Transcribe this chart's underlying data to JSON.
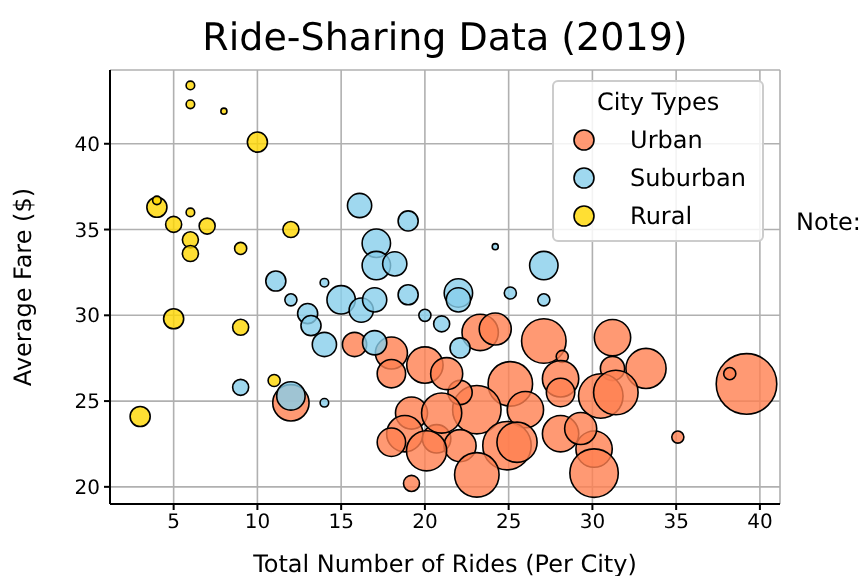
{
  "chart_data": {
    "type": "bubble",
    "title": "Ride-Sharing Data (2019)",
    "xlabel": "Total Number of Rides (Per City)",
    "ylabel": "Average Fare ($)",
    "legend_title": "City Types",
    "legend": "top right",
    "grid": true,
    "marker": "circle",
    "xlim": [
      1.2,
      41.2
    ],
    "xticks": [
      5,
      10,
      15,
      20,
      25,
      30,
      35,
      40
    ],
    "ylim": [
      19,
      44.3
    ],
    "yticks": [
      20,
      25,
      30,
      35,
      40
    ],
    "annotations": [
      "Note:"
    ],
    "series": [
      {
        "name": "Urban",
        "color": "#ff7f50",
        "x": [
          15.8,
          18,
          20,
          18,
          19.2,
          18.8,
          18,
          19.2,
          12,
          20.7,
          23.3,
          24.2,
          27.1,
          31.2,
          28.2,
          33.2,
          39.2,
          38.2,
          31.2,
          25.1,
          28.1,
          30.5,
          31.4,
          28.1,
          23.1,
          26,
          22.1,
          21.3,
          21,
          28.1,
          24.9,
          30.1,
          22.1,
          23.1,
          30.1,
          35.1,
          25.5,
          29.3,
          20.1
        ],
        "values": [
          28.3,
          27.8,
          27.1,
          26.6,
          24.3,
          23.1,
          22.6,
          20.2,
          24.9,
          22.8,
          29,
          29.2,
          28.5,
          28.7,
          27.6,
          26.9,
          26,
          26.6,
          26.9,
          26,
          26.3,
          25.3,
          25.5,
          25.5,
          24.5,
          24.5,
          25.5,
          26.6,
          24.3,
          23.1,
          22.4,
          22.2,
          22.4,
          20.7,
          20.8,
          22.9,
          22.6,
          23.4,
          22.1
        ],
        "sizes": [
          0.16,
          0.28,
          0.36,
          0.22,
          0.28,
          0.36,
          0.22,
          0.07,
          0.36,
          0.22,
          0.36,
          0.28,
          0.54,
          0.36,
          0.04,
          0.44,
          1,
          0.04,
          0.16,
          0.54,
          0.36,
          0.54,
          0.54,
          0.22,
          0.64,
          0.36,
          0.16,
          0.28,
          0.44,
          0.36,
          0.64,
          0.36,
          0.28,
          0.54,
          0.64,
          0.04,
          0.44,
          0.28,
          0.44
        ]
      },
      {
        "name": "Suburban",
        "color": "#87ceeb",
        "x": [
          16.1,
          19,
          17.1,
          17.1,
          18.2,
          11.1,
          14,
          12,
          15,
          16.2,
          17,
          19,
          13,
          13.2,
          14,
          20,
          21,
          17,
          9,
          12,
          14,
          24.2,
          27.1,
          25.1,
          27.1,
          22,
          22,
          22.1
        ],
        "values": [
          36.4,
          35.5,
          34.2,
          32.9,
          33,
          32,
          31.9,
          30.9,
          30.9,
          30.3,
          30.9,
          31.2,
          30.1,
          29.4,
          28.3,
          30,
          29.5,
          28.4,
          25.8,
          25.3,
          24.9,
          34,
          32.9,
          31.3,
          30.9,
          31.3,
          30.9,
          28.1
        ],
        "sizes": [
          0.16,
          0.11,
          0.22,
          0.22,
          0.16,
          0.11,
          0.02,
          0.04,
          0.22,
          0.16,
          0.16,
          0.11,
          0.11,
          0.11,
          0.16,
          0.04,
          0.07,
          0.16,
          0.07,
          0.22,
          0.02,
          0.01,
          0.22,
          0.04,
          0.04,
          0.22,
          0.16,
          0.11
        ]
      },
      {
        "name": "Rural",
        "color": "#ffd700",
        "x": [
          3,
          4,
          4,
          5,
          5,
          6,
          6,
          6,
          6,
          6,
          7,
          8,
          9,
          9,
          10,
          12,
          11
        ],
        "values": [
          24.1,
          36.3,
          36.7,
          35.3,
          29.8,
          43.4,
          42.3,
          36,
          34.4,
          33.6,
          35.2,
          41.9,
          33.9,
          29.3,
          40.1,
          35,
          26.2
        ],
        "sizes": [
          0.11,
          0.11,
          0.02,
          0.07,
          0.11,
          0.02,
          0.02,
          0.02,
          0.07,
          0.07,
          0.07,
          0.01,
          0.04,
          0.07,
          0.11,
          0.07,
          0.04
        ]
      }
    ]
  }
}
